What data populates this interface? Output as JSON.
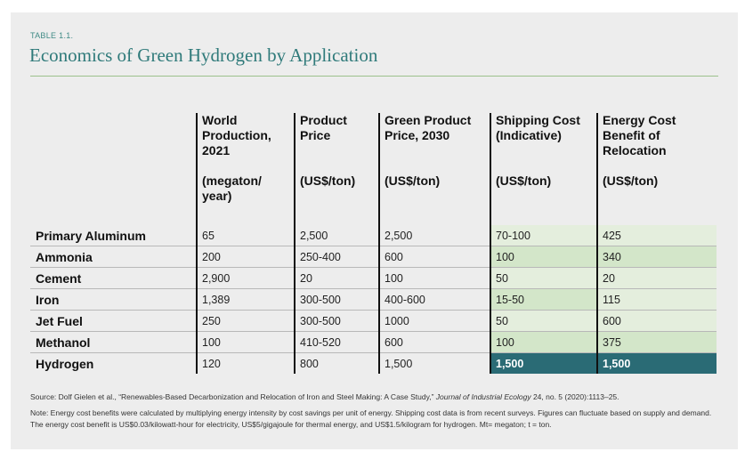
{
  "table": {
    "label": "TABLE 1.1.",
    "title": "Economics of Green Hydrogen by Application",
    "columns": [
      {
        "name": "World Production, 2021",
        "unit": "(megaton/ year)"
      },
      {
        "name": "Product Price",
        "unit": "(US$/ton)"
      },
      {
        "name": "Green Product Price, 2030",
        "unit": "(US$/ton)"
      },
      {
        "name": "Shipping Cost (Indicative)",
        "unit": "(US$/ton)"
      },
      {
        "name": "Energy Cost Benefit of Relocation",
        "unit": "(US$/ton)"
      }
    ],
    "rows": [
      {
        "label": "Primary Aluminum",
        "values": [
          "65",
          "2,500",
          "2,500",
          "70-100",
          "425"
        ]
      },
      {
        "label": "Ammonia",
        "values": [
          "200",
          "250-400",
          "600",
          "100",
          "340"
        ]
      },
      {
        "label": "Cement",
        "values": [
          "2,900",
          "20",
          "100",
          "50",
          "20"
        ]
      },
      {
        "label": "Iron",
        "values": [
          "1,389",
          "300-500",
          "400-600",
          "15-50",
          "115"
        ]
      },
      {
        "label": "Jet Fuel",
        "values": [
          "250",
          "300-500",
          "1000",
          "50",
          "600"
        ]
      },
      {
        "label": "Methanol",
        "values": [
          "100",
          "410-520",
          "600",
          "100",
          "375"
        ]
      },
      {
        "label": "Hydrogen",
        "values": [
          "120",
          "800",
          "1,500",
          "1,500",
          "1,500"
        ]
      }
    ],
    "colors": {
      "title": "#2f7a7a",
      "light_green": "#e4eedd",
      "medium_green": "#d3e6c9",
      "highlight": "#2a6b75"
    }
  },
  "notes": {
    "source_prefix": "Source: Dolf Gielen et al., “Renewables-Based Decarbonization and Relocation of Iron and Steel Making: A Case Study,” ",
    "source_journal": "Journal of Industrial Ecology",
    "source_suffix": " 24, no. 5 (2020):1113–25.",
    "note": "Note: Energy cost benefits were calculated by multiplying energy intensity by cost savings per unit of energy. Shipping cost data is from recent surveys. Figures can fluctuate based on supply and demand. The energy cost benefit is US$0.03/kilowatt-hour for electricity, US$5/gigajoule for thermal energy, and US$1.5/kilogram for hydrogen. Mt= megaton; t = ton."
  }
}
